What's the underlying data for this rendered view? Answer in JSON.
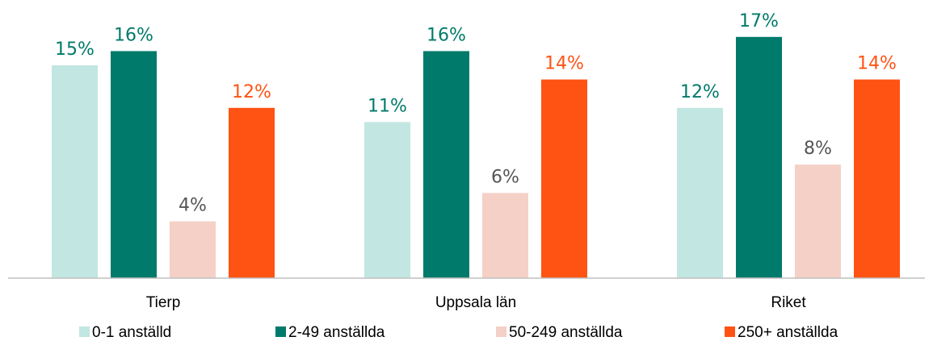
{
  "chart_data": {
    "type": "bar",
    "categories": [
      "Tierp",
      "Uppsala län",
      "Riket"
    ],
    "series": [
      {
        "name": "0-1 anställd",
        "values": [
          15,
          11,
          12
        ],
        "labels": [
          "15%",
          "11%",
          "12%"
        ],
        "color": "#c2e6e1",
        "label_color": "#007a6a"
      },
      {
        "name": "2-49 anställda",
        "values": [
          16,
          16,
          17
        ],
        "labels": [
          "16%",
          "16%",
          "17%"
        ],
        "color": "#007a6a",
        "label_color": "#007a6a"
      },
      {
        "name": "50-249 anställda",
        "values": [
          4,
          6,
          8
        ],
        "labels": [
          "4%",
          "6%",
          "8%"
        ],
        "color": "#f4d0c6",
        "label_color": "#555555"
      },
      {
        "name": "250+ anställda",
        "values": [
          12,
          14,
          14
        ],
        "labels": [
          "12%",
          "14%",
          "14%"
        ],
        "color": "#ff5314",
        "label_color": "#ff5314"
      }
    ],
    "ylim": [
      0,
      20
    ],
    "legend_position": "bottom",
    "grid": false
  }
}
